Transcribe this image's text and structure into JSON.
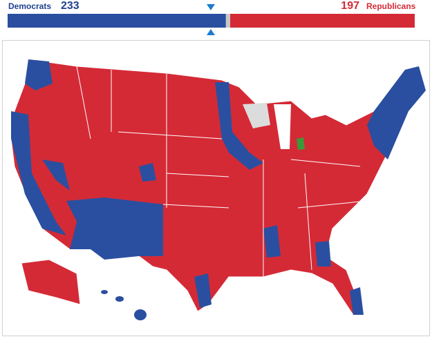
{
  "header": {
    "democrats": {
      "label": "Democrats",
      "seats": 233
    },
    "republicans": {
      "label": "Republicans",
      "seats": 197
    }
  }
}
